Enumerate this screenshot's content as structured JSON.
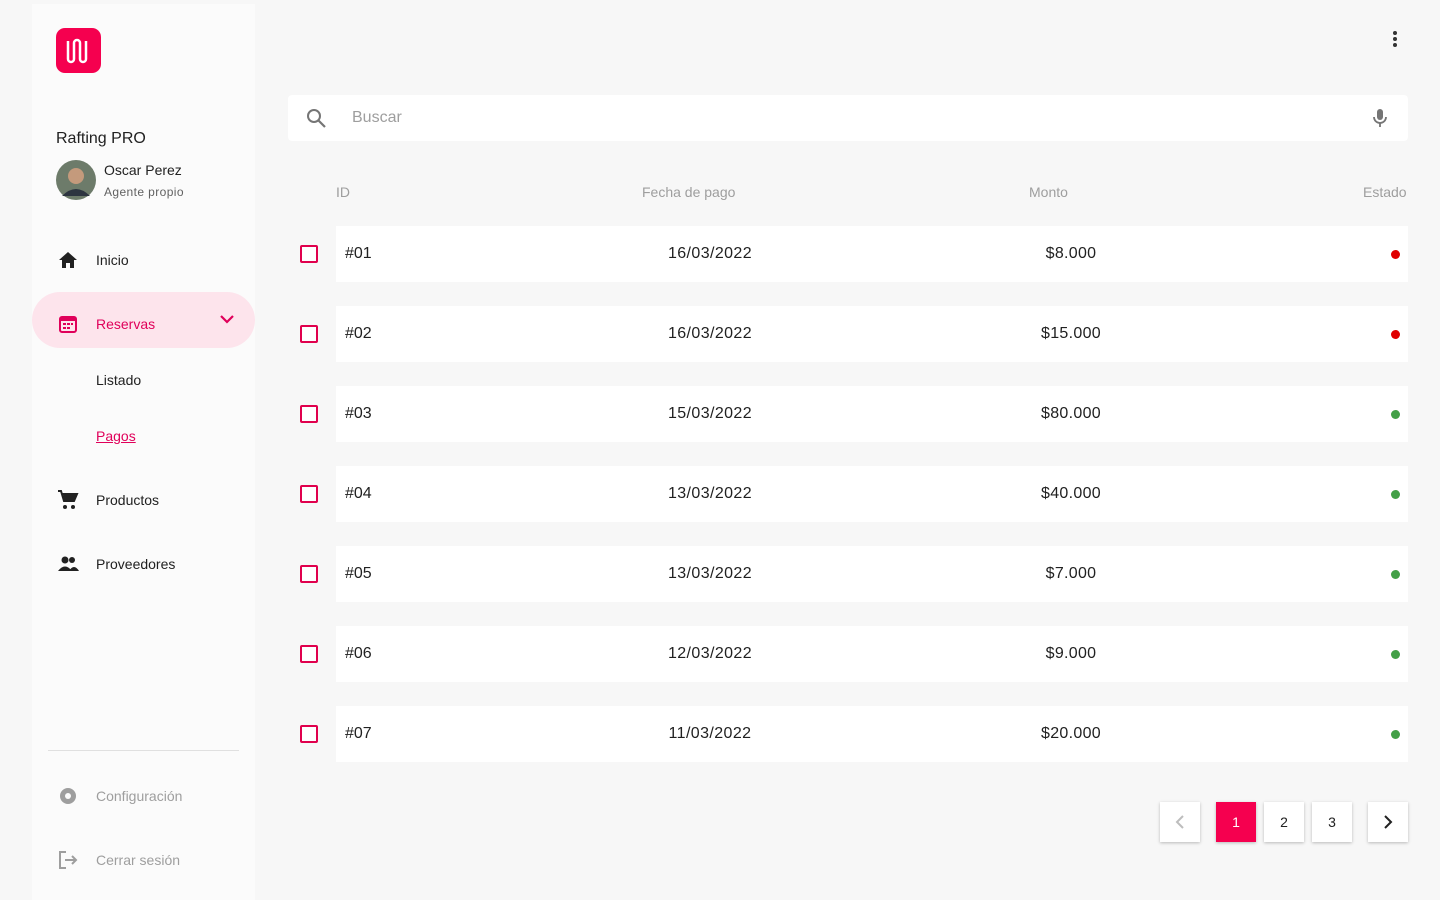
{
  "app": {
    "name": "Rafting PRO"
  },
  "user": {
    "name": "Oscar Perez",
    "role": "Agente propio"
  },
  "nav": [
    {
      "label": "Inicio",
      "icon": "home"
    },
    {
      "label": "Reservas",
      "icon": "calendar",
      "active": true,
      "children": [
        {
          "label": "Listado"
        },
        {
          "label": "Pagos",
          "active": true
        }
      ]
    },
    {
      "label": "Productos",
      "icon": "cart"
    },
    {
      "label": "Proveedores",
      "icon": "people"
    }
  ],
  "footer_nav": [
    {
      "label": "Configuración",
      "icon": "gear"
    },
    {
      "label": "Cerrar sesión",
      "icon": "logout"
    }
  ],
  "search": {
    "placeholder": "Buscar"
  },
  "table": {
    "headers": [
      "ID",
      "Fecha de pago",
      "Monto",
      "Estado"
    ],
    "rows": [
      {
        "id": "#01",
        "date": "16/03/2022",
        "amount": "$8.000",
        "status_color": "#e00000"
      },
      {
        "id": "#02",
        "date": "16/03/2022",
        "amount": "$15.000",
        "status_color": "#e00000"
      },
      {
        "id": "#03",
        "date": "15/03/2022",
        "amount": "$80.000",
        "status_color": "#43a047"
      },
      {
        "id": "#04",
        "date": "13/03/2022",
        "amount": "$40.000",
        "status_color": "#43a047"
      },
      {
        "id": "#05",
        "date": "13/03/2022",
        "amount": "$7.000",
        "status_color": "#43a047"
      },
      {
        "id": "#06",
        "date": "12/03/2022",
        "amount": "$9.000",
        "status_color": "#43a047"
      },
      {
        "id": "#07",
        "date": "11/03/2022",
        "amount": "$20.000",
        "status_color": "#43a047"
      }
    ]
  },
  "pagination": {
    "pages": [
      1,
      2,
      3
    ],
    "current": 1
  }
}
